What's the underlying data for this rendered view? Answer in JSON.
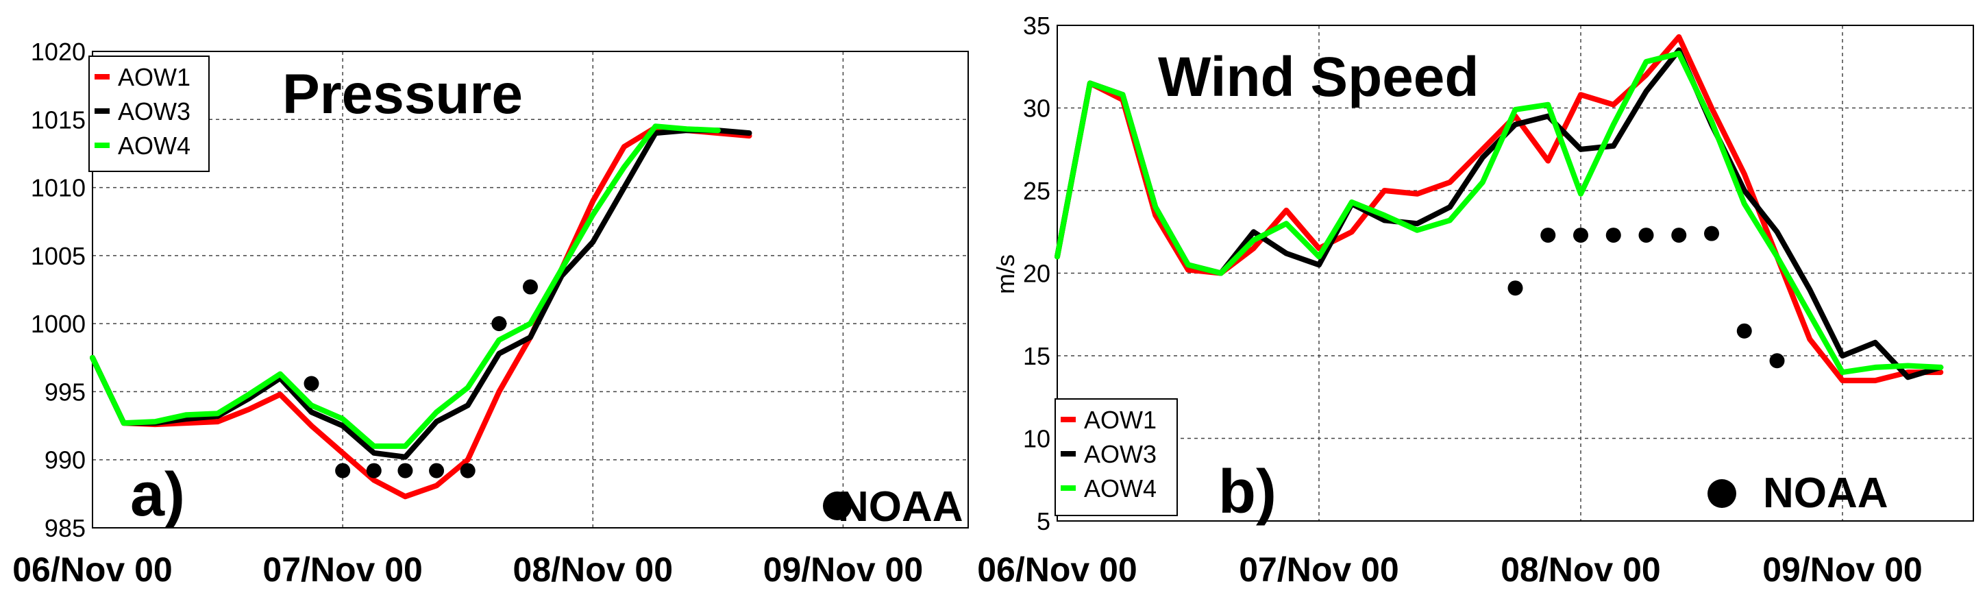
{
  "chart_data": [
    {
      "type": "line",
      "panel_label": "a)",
      "title": "Pressure",
      "ylabel": "",
      "ylim": [
        985,
        1020
      ],
      "yticks": [
        "985",
        "990",
        "995",
        "1000",
        "1005",
        "1010",
        "1015",
        "1020"
      ],
      "xlim": [
        0,
        3.5
      ],
      "xticks": [
        0,
        1,
        2,
        3
      ],
      "xticklabels": [
        "06/Nov 00",
        "07/Nov 00",
        "08/Nov 00",
        "09/Nov 00"
      ],
      "series": [
        {
          "name": "AOW1",
          "color": "#ff0000",
          "points": [
            [
              0,
              997.5
            ],
            [
              0.125,
              992.7
            ],
            [
              0.25,
              992.6
            ],
            [
              0.375,
              992.7
            ],
            [
              0.5,
              992.8
            ],
            [
              0.625,
              993.7
            ],
            [
              0.75,
              994.8
            ],
            [
              0.875,
              992.5
            ],
            [
              1.0,
              990.5
            ],
            [
              1.125,
              988.5
            ],
            [
              1.25,
              987.3
            ],
            [
              1.375,
              988.1
            ],
            [
              1.5,
              990.0
            ],
            [
              1.625,
              995.0
            ],
            [
              1.75,
              999.0
            ],
            [
              1.875,
              1004.0
            ],
            [
              2.0,
              1009.0
            ],
            [
              2.125,
              1013.0
            ],
            [
              2.25,
              1014.4
            ],
            [
              2.375,
              1014.2
            ],
            [
              2.5,
              1014.0
            ],
            [
              2.625,
              1013.8
            ]
          ]
        },
        {
          "name": "AOW3",
          "color": "#000000",
          "points": [
            [
              0,
              997.5
            ],
            [
              0.125,
              992.7
            ],
            [
              0.25,
              992.7
            ],
            [
              0.375,
              993.0
            ],
            [
              0.5,
              993.2
            ],
            [
              0.625,
              994.5
            ],
            [
              0.75,
              996.0
            ],
            [
              0.875,
              993.5
            ],
            [
              1.0,
              992.5
            ],
            [
              1.125,
              990.5
            ],
            [
              1.25,
              990.2
            ],
            [
              1.375,
              992.8
            ],
            [
              1.5,
              994.0
            ],
            [
              1.625,
              997.8
            ],
            [
              1.75,
              999.0
            ],
            [
              1.875,
              1003.5
            ],
            [
              2.0,
              1006.0
            ],
            [
              2.125,
              1010.0
            ],
            [
              2.25,
              1014.0
            ],
            [
              2.375,
              1014.2
            ],
            [
              2.5,
              1014.2
            ],
            [
              2.625,
              1014.0
            ]
          ]
        },
        {
          "name": "AOW4",
          "color": "#00ff00",
          "points": [
            [
              0,
              997.5
            ],
            [
              0.125,
              992.7
            ],
            [
              0.25,
              992.8
            ],
            [
              0.375,
              993.3
            ],
            [
              0.5,
              993.4
            ],
            [
              0.625,
              994.8
            ],
            [
              0.75,
              996.3
            ],
            [
              0.875,
              994.0
            ],
            [
              1.0,
              993.0
            ],
            [
              1.125,
              991.0
            ],
            [
              1.25,
              991.0
            ],
            [
              1.375,
              993.5
            ],
            [
              1.5,
              995.3
            ],
            [
              1.625,
              998.8
            ],
            [
              1.75,
              1000.0
            ],
            [
              1.875,
              1004.0
            ],
            [
              2.0,
              1008.0
            ],
            [
              2.125,
              1011.5
            ],
            [
              2.25,
              1014.5
            ],
            [
              2.375,
              1014.3
            ],
            [
              2.5,
              1014.2
            ]
          ]
        }
      ],
      "noaa": [
        [
          0.875,
          995.6
        ],
        [
          1.0,
          989.2
        ],
        [
          1.125,
          989.2
        ],
        [
          1.25,
          989.2
        ],
        [
          1.375,
          989.2
        ],
        [
          1.5,
          989.2
        ],
        [
          1.625,
          1000.0
        ],
        [
          1.75,
          1002.7
        ]
      ],
      "noaa_label": "NOAA",
      "legend": [
        "AOW1",
        "AOW3",
        "AOW4"
      ],
      "legend_position": "top-left"
    },
    {
      "type": "line",
      "panel_label": "b)",
      "title": "Wind Speed",
      "ylabel": "m/s",
      "ylim": [
        5,
        35
      ],
      "yticks": [
        "5",
        "10",
        "15",
        "20",
        "25",
        "30",
        "35"
      ],
      "xlim": [
        0,
        3.5
      ],
      "xticks": [
        0,
        1,
        2,
        3
      ],
      "xticklabels": [
        "06/Nov 00",
        "07/Nov 00",
        "08/Nov 00",
        "09/Nov 00"
      ],
      "series": [
        {
          "name": "AOW1",
          "color": "#ff0000",
          "points": [
            [
              0,
              21.0
            ],
            [
              0.125,
              31.5
            ],
            [
              0.25,
              30.5
            ],
            [
              0.375,
              23.5
            ],
            [
              0.5,
              20.2
            ],
            [
              0.625,
              20.0
            ],
            [
              0.75,
              21.5
            ],
            [
              0.875,
              23.8
            ],
            [
              1.0,
              21.5
            ],
            [
              1.125,
              22.5
            ],
            [
              1.25,
              25.0
            ],
            [
              1.375,
              24.8
            ],
            [
              1.5,
              25.5
            ],
            [
              1.625,
              27.5
            ],
            [
              1.75,
              29.5
            ],
            [
              1.875,
              26.8
            ],
            [
              2.0,
              30.8
            ],
            [
              2.125,
              30.2
            ],
            [
              2.25,
              32.0
            ],
            [
              2.375,
              34.3
            ],
            [
              2.5,
              30.0
            ],
            [
              2.625,
              26.0
            ],
            [
              2.75,
              21.0
            ],
            [
              2.875,
              16.0
            ],
            [
              3.0,
              13.5
            ],
            [
              3.125,
              13.5
            ],
            [
              3.25,
              14.0
            ],
            [
              3.375,
              14.0
            ]
          ]
        },
        {
          "name": "AOW3",
          "color": "#000000",
          "points": [
            [
              0,
              21.0
            ],
            [
              0.125,
              31.5
            ],
            [
              0.25,
              30.8
            ],
            [
              0.375,
              24.0
            ],
            [
              0.5,
              20.5
            ],
            [
              0.625,
              20.0
            ],
            [
              0.75,
              22.5
            ],
            [
              0.875,
              21.2
            ],
            [
              1.0,
              20.5
            ],
            [
              1.125,
              24.2
            ],
            [
              1.25,
              23.2
            ],
            [
              1.375,
              23.0
            ],
            [
              1.5,
              24.0
            ],
            [
              1.625,
              27.0
            ],
            [
              1.75,
              29.0
            ],
            [
              1.875,
              29.5
            ],
            [
              2.0,
              27.5
            ],
            [
              2.125,
              27.7
            ],
            [
              2.25,
              31.0
            ],
            [
              2.375,
              33.5
            ],
            [
              2.5,
              29.0
            ],
            [
              2.625,
              25.0
            ],
            [
              2.75,
              22.5
            ],
            [
              2.875,
              19.0
            ],
            [
              3.0,
              15.0
            ],
            [
              3.125,
              15.8
            ],
            [
              3.25,
              13.7
            ],
            [
              3.375,
              14.3
            ]
          ]
        },
        {
          "name": "AOW4",
          "color": "#00ff00",
          "points": [
            [
              0,
              21.0
            ],
            [
              0.125,
              31.5
            ],
            [
              0.25,
              30.8
            ],
            [
              0.375,
              24.0
            ],
            [
              0.5,
              20.5
            ],
            [
              0.625,
              20.0
            ],
            [
              0.75,
              22.0
            ],
            [
              0.875,
              23.0
            ],
            [
              1.0,
              21.0
            ],
            [
              1.125,
              24.3
            ],
            [
              1.25,
              23.5
            ],
            [
              1.375,
              22.6
            ],
            [
              1.5,
              23.2
            ],
            [
              1.625,
              25.5
            ],
            [
              1.75,
              29.9
            ],
            [
              1.875,
              30.2
            ],
            [
              2.0,
              24.8
            ],
            [
              2.125,
              29.0
            ],
            [
              2.25,
              32.8
            ],
            [
              2.375,
              33.3
            ],
            [
              2.5,
              29.2
            ],
            [
              2.625,
              24.2
            ],
            [
              2.75,
              21.0
            ],
            [
              2.875,
              17.5
            ],
            [
              3.0,
              14.0
            ],
            [
              3.125,
              14.3
            ],
            [
              3.25,
              14.4
            ],
            [
              3.375,
              14.3
            ]
          ]
        }
      ],
      "noaa": [
        [
          1.75,
          19.1
        ],
        [
          1.875,
          22.3
        ],
        [
          2.0,
          22.3
        ],
        [
          2.125,
          22.3
        ],
        [
          2.25,
          22.3
        ],
        [
          2.375,
          22.3
        ],
        [
          2.5,
          22.4
        ],
        [
          2.625,
          16.5
        ],
        [
          2.75,
          14.7
        ]
      ],
      "noaa_label": "NOAA",
      "legend": [
        "AOW1",
        "AOW3",
        "AOW4"
      ],
      "legend_position": "bottom-left"
    }
  ]
}
